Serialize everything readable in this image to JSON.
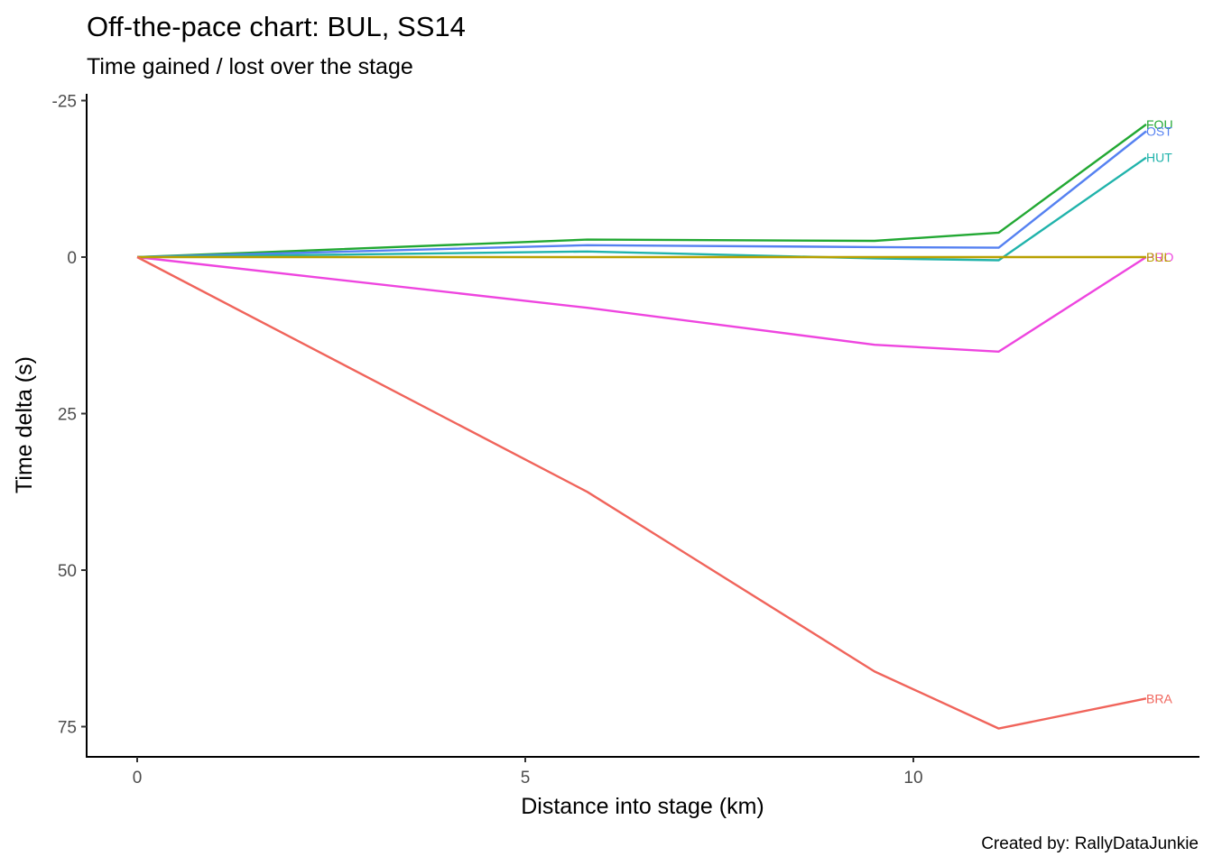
{
  "chart_data": {
    "type": "line",
    "title": "Off-the-pace chart: BUL, SS14",
    "subtitle": "Time gained / lost over the stage",
    "xlabel": "Distance into stage (km)",
    "ylabel": "Time delta (s)",
    "caption": "Created by: RallyDataJunkie",
    "xlim": [
      -0.3,
      13.4
    ],
    "ylim": [
      -25,
      80
    ],
    "y_reversed": true,
    "x_ticks": [
      0,
      5,
      10
    ],
    "x_tick_labels": [
      "0",
      "5",
      "10"
    ],
    "y_ticks": [
      -25,
      0,
      25,
      50,
      75
    ],
    "y_tick_labels": [
      "-25",
      "0",
      "25",
      "50",
      "75"
    ],
    "grid": false,
    "legend": "none",
    "x": [
      0,
      5.8,
      9.5,
      11.1,
      13.0
    ],
    "series": [
      {
        "name": "FOU",
        "color": "#22a833",
        "values": [
          0,
          -2.8,
          -2.6,
          -3.9,
          -21.2
        ]
      },
      {
        "name": "OST",
        "color": "#5581f1",
        "values": [
          0,
          -1.9,
          -1.6,
          -1.5,
          -20.1
        ]
      },
      {
        "name": "HUT",
        "color": "#20b3ab",
        "values": [
          0,
          -0.9,
          0.2,
          0.5,
          -15.9
        ]
      },
      {
        "name": "PRO",
        "color": "#ee45df",
        "values": [
          0,
          8.1,
          14.0,
          15.1,
          0
        ]
      },
      {
        "name": "BUL",
        "color": "#b8a000",
        "values": [
          0,
          0,
          0,
          0,
          0
        ]
      },
      {
        "name": "BRA",
        "color": "#f0645b",
        "values": [
          0,
          37.5,
          66.2,
          75.3,
          70.5
        ]
      }
    ]
  }
}
